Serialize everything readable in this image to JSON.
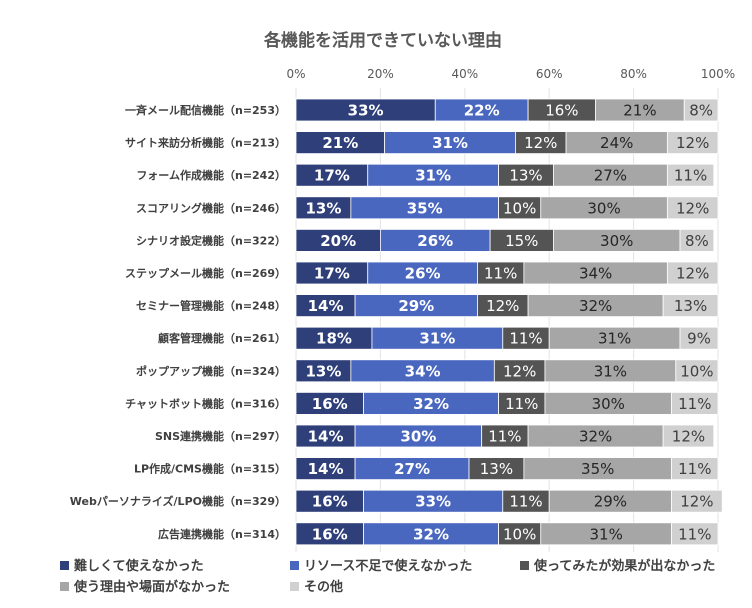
{
  "chart_data": {
    "type": "bar",
    "orientation": "horizontal",
    "stacked": true,
    "title": "各機能を活用できていない理由",
    "xlim": [
      0,
      100
    ],
    "xticks": [
      "0%",
      "20%",
      "40%",
      "60%",
      "80%",
      "100%"
    ],
    "legend_position": "bottom",
    "categories": [
      "一斉メール配信機能（n=253）",
      "サイト来訪分析機能（n=213）",
      "フォーム作成機能（n=242）",
      "スコアリング機能（n=246）",
      "シナリオ設定機能（n=322）",
      "ステップメール機能（n=269）",
      "セミナー管理機能（n=248）",
      "顧客管理機能（n=261）",
      "ポップアップ機能（n=324）",
      "チャットボット機能（n=316）",
      "SNS連携機能（n=297）",
      "LP作成/CMS機能（n=315）",
      "Webパーソナライズ/LPO機能（n=329）",
      "広告連携機能（n=314）"
    ],
    "series": [
      {
        "name": "難しくて使えなかった",
        "color": "#2e3f7a",
        "text_color": "#ffffff",
        "values": [
          33,
          21,
          17,
          13,
          20,
          17,
          14,
          18,
          13,
          16,
          14,
          14,
          16,
          16
        ]
      },
      {
        "name": "リソース不足で使えなかった",
        "color": "#4a67c0",
        "text_color": "#ffffff",
        "values": [
          22,
          31,
          31,
          35,
          26,
          26,
          29,
          31,
          34,
          32,
          30,
          27,
          33,
          32
        ]
      },
      {
        "name": "使ってみたが効果が出なかった",
        "color": "#545454",
        "text_color": "#ffffff",
        "values": [
          16,
          12,
          13,
          10,
          15,
          11,
          12,
          11,
          12,
          11,
          11,
          13,
          11,
          10
        ]
      },
      {
        "name": "使う理由や場面がなかった",
        "color": "#a6a6a6",
        "text_color": "#262626",
        "values": [
          21,
          24,
          27,
          30,
          30,
          34,
          32,
          31,
          31,
          30,
          32,
          35,
          29,
          31
        ]
      },
      {
        "name": "その他",
        "color": "#d0d0d0",
        "text_color": "#404040",
        "values": [
          8,
          12,
          11,
          12,
          8,
          12,
          13,
          9,
          10,
          11,
          12,
          11,
          12,
          11
        ]
      }
    ]
  }
}
